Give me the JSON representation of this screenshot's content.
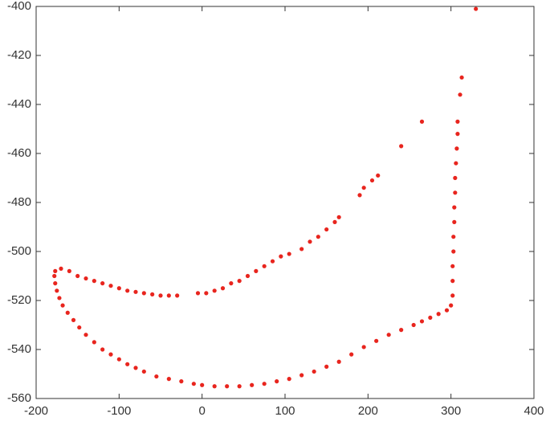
{
  "chart_data": {
    "type": "scatter",
    "color": "#e8251e",
    "xlim": [
      -200,
      400
    ],
    "xticks": [
      -200,
      -100,
      0,
      100,
      200,
      300,
      400
    ],
    "ylim": [
      -560,
      -400
    ],
    "yticks": [
      -560,
      -540,
      -520,
      -500,
      -480,
      -460,
      -440,
      -420,
      -400
    ],
    "x": [
      -170,
      -160,
      -150,
      -140,
      -130,
      -120,
      -110,
      -100,
      -90,
      -80,
      -70,
      -60,
      -50,
      -40,
      -30,
      -5,
      5,
      15,
      25,
      35,
      45,
      55,
      65,
      75,
      85,
      95,
      105,
      120,
      130,
      140,
      150,
      160,
      165,
      190,
      195,
      205,
      212,
      240,
      265,
      330,
      -177,
      -178,
      -177,
      -175,
      -172,
      -168,
      -162,
      -155,
      -148,
      -140,
      -130,
      -120,
      -110,
      -100,
      -90,
      -80,
      -70,
      -55,
      -40,
      -25,
      -10,
      0,
      15,
      30,
      45,
      60,
      75,
      90,
      105,
      120,
      135,
      150,
      165,
      180,
      195,
      210,
      225,
      240,
      255,
      265,
      275,
      285,
      295,
      300,
      302,
      302,
      302,
      303,
      303,
      304,
      304,
      305,
      305,
      306,
      307,
      308,
      308,
      311,
      313
    ],
    "values": [
      -507,
      -508,
      -510,
      -511,
      -512,
      -513,
      -514,
      -515,
      -516,
      -516.5,
      -517,
      -517.5,
      -518,
      -518,
      -518,
      -517,
      -517,
      -516,
      -515,
      -513,
      -512,
      -510,
      -508,
      -506,
      -504,
      -502,
      -501,
      -499,
      -496,
      -494,
      -491,
      -488,
      -486,
      -477,
      -474,
      -471,
      -469,
      -457,
      -447,
      -401,
      -508,
      -510,
      -513,
      -516,
      -519,
      -522,
      -525,
      -528,
      -531,
      -534,
      -537,
      -540,
      -542,
      -544,
      -546,
      -547.5,
      -549,
      -551,
      -552,
      -553,
      -554,
      -554.5,
      -555,
      -555,
      -555,
      -554.5,
      -554,
      -553,
      -552,
      -550.5,
      -549,
      -547,
      -545,
      -542,
      -539,
      -536.5,
      -534,
      -532,
      -530,
      -528.5,
      -527,
      -525.5,
      -524,
      -522,
      -518,
      -512,
      -506,
      -500,
      -494,
      -488,
      -482,
      -476,
      -470,
      -464,
      -458,
      -452,
      -447,
      -436,
      -429
    ]
  }
}
